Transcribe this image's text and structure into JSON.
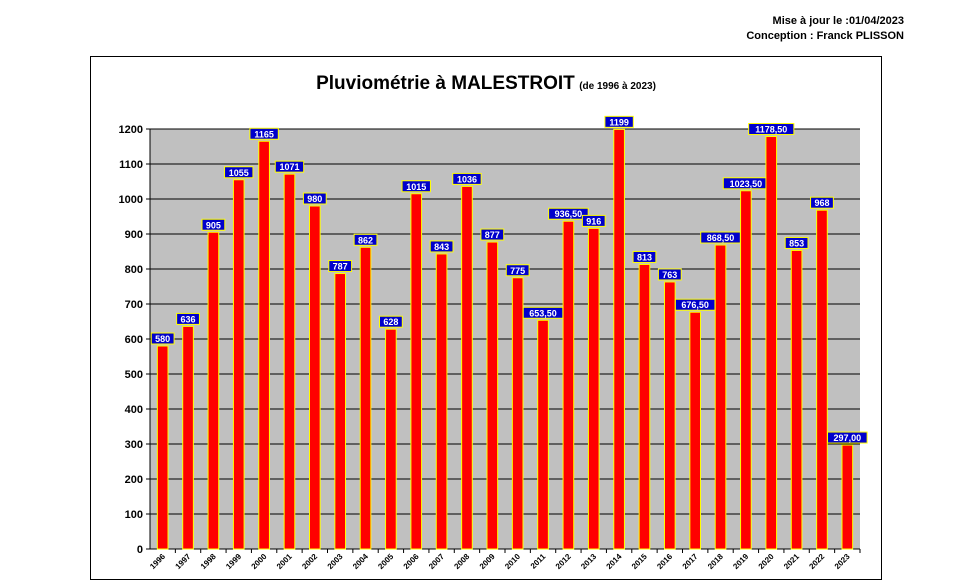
{
  "header": {
    "update_line": "Mise à jour le :01/04/2023",
    "author_line": "Conception : Franck PLISSON"
  },
  "colors": {
    "plot_background": "#c0c0c0",
    "bar_fill": "#ff0000",
    "bar_outline": "#ffff00",
    "label_fill": "#0000cc",
    "label_text": "#ffffff",
    "gridline": "#000000"
  },
  "chart_data": {
    "type": "bar",
    "title": "Pluviométrie à MALESTROIT",
    "subtitle": "(de 1996 à 2023)",
    "xlabel": "",
    "ylabel": "",
    "ylim": [
      0,
      1200
    ],
    "ytick_step": 100,
    "grid": true,
    "legend": "none",
    "categories": [
      "1996",
      "1997",
      "1998",
      "1999",
      "2000",
      "2001",
      "2002",
      "2003",
      "2004",
      "2005",
      "2006",
      "2007",
      "2008",
      "2009",
      "2010",
      "2011",
      "2012",
      "2013",
      "2014",
      "2015",
      "2016",
      "2017",
      "2018",
      "2019",
      "2020",
      "2021",
      "2022",
      "2023"
    ],
    "values": [
      580,
      636,
      905,
      1055,
      1165,
      1071,
      980,
      787,
      862,
      628,
      1015,
      843,
      1036,
      877,
      775,
      653.5,
      936.5,
      916,
      1199,
      813,
      763,
      676.5,
      868.5,
      1023.5,
      1178.5,
      853,
      968,
      297
    ],
    "data_labels": [
      "580",
      "636",
      "905",
      "1055",
      "1165",
      "1071",
      "980",
      "787",
      "862",
      "628",
      "1015",
      "843",
      "1036",
      "877",
      "775",
      "653,50",
      "936,50",
      "916",
      "1199",
      "813",
      "763",
      "676,50",
      "868,50",
      "1023,50",
      "1178,50",
      "853",
      "968",
      "297,00"
    ]
  }
}
